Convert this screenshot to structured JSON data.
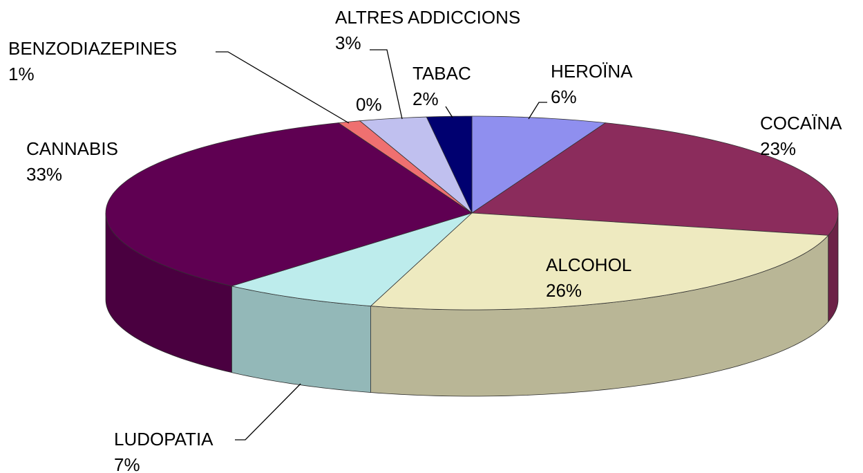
{
  "chart_data": {
    "type": "pie3d",
    "categories": [
      "HEROÏNA",
      "COCAÏNA",
      "ALCOHOL",
      "LUDOPATIA",
      "CANNABIS",
      "BENZODIAZEPINES",
      null,
      "ALTRES ADDICCIONS",
      "TABAC"
    ],
    "values": [
      6,
      23,
      26,
      7,
      33,
      1,
      0,
      3,
      2
    ],
    "value_labels": [
      "6%",
      "23%",
      "26%",
      "7%",
      "33%",
      "1%",
      "0%",
      "3%",
      "2%"
    ],
    "colors": [
      "#8f8fef",
      "#8b2c5c",
      "#eeeac0",
      "#bdecec",
      "#5f0052",
      "#ef7070",
      "#ffffcc",
      "#c0c0ef",
      "#000070"
    ]
  }
}
